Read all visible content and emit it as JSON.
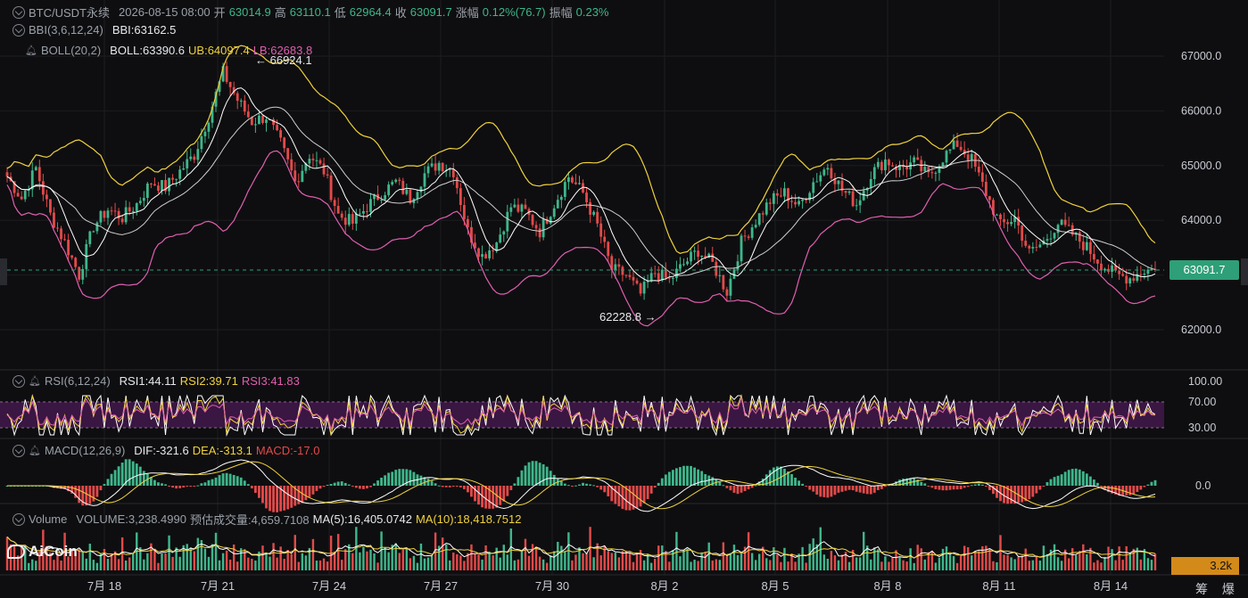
{
  "symbol_header": {
    "pair": "BTC/USDT永续",
    "datetime": "2026-08-15 08:00",
    "open_label": "开",
    "open": "63014.9",
    "high_label": "高",
    "high": "63110.1",
    "low_label": "低",
    "low": "62964.4",
    "close_label": "收",
    "close": "63091.7",
    "change_label": "涨幅",
    "change": "0.12%(76.7)",
    "amp_label": "振幅",
    "amp": "0.23%"
  },
  "bbi": {
    "name": "BBI(3,6,12,24)",
    "value": "BBI:63162.5"
  },
  "boll": {
    "name": "BOLL(20,2)",
    "mid": "BOLL:63390.6",
    "ub": "UB:64097.4",
    "lb": "LB:62683.8"
  },
  "annotations": {
    "high": "66924.1",
    "low": "62228.8",
    "high_arrow": "←",
    "low_arrow": "→"
  },
  "price_tag": "63091.7",
  "rsi": {
    "name": "RSI(6,12,24)",
    "rsi1": "RSI1:44.11",
    "rsi2": "RSI2:39.71",
    "rsi3": "RSI3:41.83",
    "ticks": [
      "100.00",
      "70.00",
      "30.00"
    ]
  },
  "macd": {
    "name": "MACD(12,26,9)",
    "dif": "DIF:-321.6",
    "dea": "DEA:-313.1",
    "macd": "MACD:-17.0",
    "tick": "0.0"
  },
  "volume": {
    "name": "Volume",
    "vol": "VOLUME:3,238.4990",
    "est": "预估成交量:4,659.7108",
    "ma5": "MA(5):16,405.0742",
    "ma10": "MA(10):18,418.7512",
    "tag": "3.2k"
  },
  "logo": "AiCoin",
  "bottom_chip": "筹 爆",
  "colors": {
    "up": "#3fb68b",
    "down": "#e24a4a",
    "ub": "#f0d23c",
    "lb": "#e05fb0",
    "mid": "#d8d8d8",
    "bg": "#0e0e10"
  },
  "chart_data": {
    "type": "candlestick",
    "y_ticks": [
      67000,
      66000,
      65000,
      64000,
      63000,
      62000
    ],
    "y_tick_labels": [
      "67000.0",
      "66000.0",
      "65000.0",
      "64000.0",
      "63000.0",
      "62000.0"
    ],
    "x_tick_labels": [
      "7月 18",
      "7月 21",
      "7月 24",
      "7月 27",
      "7月 30",
      "8月 2",
      "8月 5",
      "8月 8",
      "8月 11",
      "8月 14"
    ],
    "ylim": [
      61500,
      67400
    ],
    "close_path": [
      64800,
      64400,
      64950,
      64100,
      63600,
      63000,
      63900,
      64200,
      64050,
      64300,
      64700,
      64600,
      64900,
      65200,
      65900,
      66700,
      66200,
      65800,
      65900,
      65400,
      64700,
      65200,
      64900,
      64100,
      63950,
      64250,
      64500,
      64700,
      64400,
      64850,
      65050,
      64900,
      63800,
      63350,
      63600,
      64250,
      64150,
      63800,
      64300,
      64800,
      64500,
      63900,
      63100,
      63000,
      62650,
      63050,
      62900,
      63200,
      63450,
      63200,
      62700,
      63600,
      64000,
      64350,
      64500,
      64250,
      64700,
      65000,
      64550,
      64300,
      64850,
      65100,
      64950,
      65050,
      64800,
      65150,
      65400,
      65100,
      64500,
      63900,
      64050,
      63400,
      63600,
      63950,
      63750,
      63500,
      63200,
      63000,
      62950,
      63091.7
    ],
    "grid": true
  }
}
